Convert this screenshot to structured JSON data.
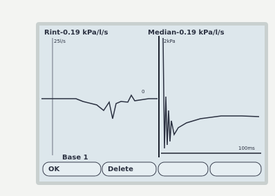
{
  "header": {
    "left_title": "Rint-0.19 kPa/l/s",
    "right_title": "Median-0.19 kPa/l/s"
  },
  "left_panel": {
    "axis_label": "25l/s",
    "marker_label": "0"
  },
  "right_panel": {
    "axis_label": "2kPa",
    "time_label": "100ms"
  },
  "footer": {
    "label": "Base 1"
  },
  "buttons": [
    "OK",
    "Delete"
  ]
}
